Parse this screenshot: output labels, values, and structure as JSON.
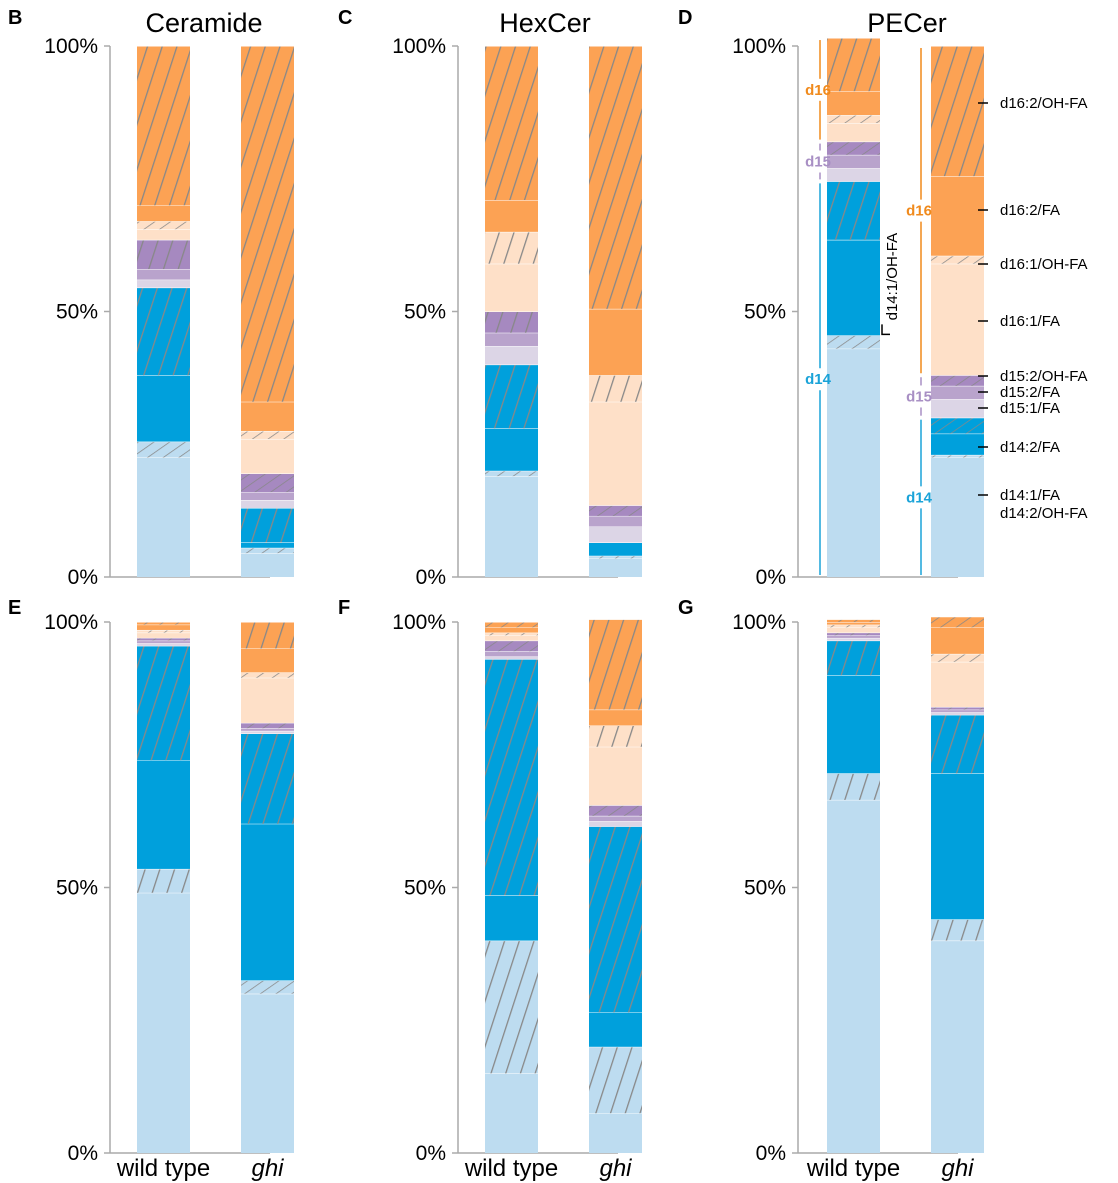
{
  "colors": {
    "d14:1/FA": "#bddcf0",
    "d14:2/OH-FA": "#bddcf0",
    "d14:2/FA": "#00a0dc",
    "d14:1/OH-FA": "#00a0dc",
    "d15:1/FA": "#dcd5e6",
    "d15:2/FA": "#b9a3cc",
    "d15:2/OH-FA": "#a689c0",
    "d16:1/FA": "#fee0c8",
    "d16:1/OH-FA": "#fee0c8",
    "d16:2/FA": "#fca254",
    "d16:2/OH-FA": "#fca254",
    "d14": "#1aa3d8",
    "d15": "#a88fc4",
    "d16": "#f08a1c",
    "hatch": "#888888",
    "axis": "#aaaaaa"
  },
  "hatched_species": [
    "d14:2/OH-FA",
    "d14:1/OH-FA",
    "d15:2/OH-FA",
    "d16:1/OH-FA",
    "d16:2/OH-FA"
  ],
  "category_labels": [
    "wild type",
    "ghi"
  ],
  "stack_order": [
    "d14:1/FA",
    "d14:2/OH-FA",
    "d14:2/FA",
    "d14:1/OH-FA",
    "d15:1/FA",
    "d15:2/FA",
    "d15:2/OH-FA",
    "d16:1/FA",
    "d16:1/OH-FA",
    "d16:2/FA",
    "d16:2/OH-FA"
  ],
  "legend": [
    {
      "label": "d16:2/OH-FA",
      "species": "d16:2/OH-FA"
    },
    {
      "label": "d16:2/FA",
      "species": "d16:2/FA"
    },
    {
      "label": "d16:1/OH-FA",
      "species": "d16:1/OH-FA"
    },
    {
      "label": "d16:1/FA",
      "species": "d16:1/FA"
    },
    {
      "label": "d15:2/OH-FA",
      "species": "d15:2/OH-FA"
    },
    {
      "label": "d15:2/FA",
      "species": "d15:2/FA"
    },
    {
      "label": "d15:1/FA",
      "species": "d15:1/FA"
    },
    {
      "label": "d14:2/FA",
      "species": "d14:2/FA"
    },
    {
      "label": "d14:1/FA",
      "species": "d14:1/FA"
    },
    {
      "label": "d14:2/OH-FA",
      "species": "d14:2/OH-FA"
    }
  ],
  "group_labels": [
    "d14",
    "d15",
    "d16"
  ],
  "inner_label": "d14:1/OH-FA",
  "chart_data": [
    {
      "panel": "B",
      "type": "bar",
      "stacked": true,
      "title": "Ceramide",
      "yticks": [
        "0%",
        "50%",
        "100%"
      ],
      "ylim": [
        0,
        100
      ],
      "categories": [
        "wild type",
        "ghi"
      ],
      "series": [
        {
          "name": "d14:1/FA",
          "values": [
            22.5,
            4.5
          ]
        },
        {
          "name": "d14:2/OH-FA",
          "values": [
            3,
            1
          ]
        },
        {
          "name": "d14:2/FA",
          "values": [
            12.5,
            1
          ]
        },
        {
          "name": "d14:1/OH-FA",
          "values": [
            16.5,
            6.5
          ]
        },
        {
          "name": "d15:1/FA",
          "values": [
            1.5,
            1.5
          ]
        },
        {
          "name": "d15:2/FA",
          "values": [
            2,
            1.5
          ]
        },
        {
          "name": "d15:2/OH-FA",
          "values": [
            5.5,
            3.5
          ]
        },
        {
          "name": "d16:1/FA",
          "values": [
            2,
            6.5
          ]
        },
        {
          "name": "d16:1/OH-FA",
          "values": [
            1.5,
            1.5
          ]
        },
        {
          "name": "d16:2/FA",
          "values": [
            3,
            5.5
          ]
        },
        {
          "name": "d16:2/OH-FA",
          "values": [
            30,
            67
          ]
        }
      ]
    },
    {
      "panel": "C",
      "type": "bar",
      "stacked": true,
      "title": "HexCer",
      "yticks": [
        "0%",
        "50%",
        "100%"
      ],
      "ylim": [
        0,
        100
      ],
      "categories": [
        "wild type",
        "ghi"
      ],
      "series": [
        {
          "name": "d14:1/FA",
          "values": [
            19,
            3.5
          ]
        },
        {
          "name": "d14:2/OH-FA",
          "values": [
            1,
            0.5
          ]
        },
        {
          "name": "d14:2/FA",
          "values": [
            8,
            2.5
          ]
        },
        {
          "name": "d14:1/OH-FA",
          "values": [
            12,
            0
          ]
        },
        {
          "name": "d15:1/FA",
          "values": [
            3.5,
            3
          ]
        },
        {
          "name": "d15:2/FA",
          "values": [
            2.5,
            2
          ]
        },
        {
          "name": "d15:2/OH-FA",
          "values": [
            4,
            2
          ]
        },
        {
          "name": "d16:1/FA",
          "values": [
            9,
            19.5
          ]
        },
        {
          "name": "d16:1/OH-FA",
          "values": [
            6,
            5
          ]
        },
        {
          "name": "d16:2/FA",
          "values": [
            6,
            12.5
          ]
        },
        {
          "name": "d16:2/OH-FA",
          "values": [
            29,
            49.5
          ]
        }
      ]
    },
    {
      "panel": "D",
      "type": "bar",
      "stacked": true,
      "title": "PECer",
      "yticks": [
        "0%",
        "50%",
        "100%"
      ],
      "ylim": [
        0,
        100
      ],
      "categories": [
        "wild type",
        "ghi"
      ],
      "series": [
        {
          "name": "d14:1/FA",
          "values": [
            43,
            22.5
          ]
        },
        {
          "name": "d14:2/OH-FA",
          "values": [
            2.5,
            0.5
          ]
        },
        {
          "name": "d14:2/FA",
          "values": [
            18,
            4
          ]
        },
        {
          "name": "d14:1/OH-FA",
          "values": [
            11,
            3
          ]
        },
        {
          "name": "d15:1/FA",
          "values": [
            2.5,
            3.5
          ]
        },
        {
          "name": "d15:2/FA",
          "values": [
            2.5,
            2.5
          ]
        },
        {
          "name": "d15:2/OH-FA",
          "values": [
            2.5,
            2
          ]
        },
        {
          "name": "d16:1/FA",
          "values": [
            3.5,
            21
          ]
        },
        {
          "name": "d16:1/OH-FA",
          "values": [
            1.5,
            1.5
          ]
        },
        {
          "name": "d16:2/FA",
          "values": [
            4.5,
            15
          ]
        },
        {
          "name": "d16:2/OH-FA",
          "values": [
            10,
            24.5
          ]
        }
      ]
    },
    {
      "panel": "E",
      "type": "bar",
      "stacked": true,
      "title": "",
      "yticks": [
        "0%",
        "50%",
        "100%"
      ],
      "ylim": [
        0,
        100
      ],
      "categories": [
        "wild type",
        "ghi"
      ],
      "series": [
        {
          "name": "d14:1/FA",
          "values": [
            49,
            30
          ]
        },
        {
          "name": "d14:2/OH-FA",
          "values": [
            4.5,
            2.5
          ]
        },
        {
          "name": "d14:2/FA",
          "values": [
            20.5,
            29.5
          ]
        },
        {
          "name": "d14:1/OH-FA",
          "values": [
            21.5,
            17
          ]
        },
        {
          "name": "d15:1/FA",
          "values": [
            0.5,
            0.5
          ]
        },
        {
          "name": "d15:2/FA",
          "values": [
            0.5,
            0.5
          ]
        },
        {
          "name": "d15:2/OH-FA",
          "values": [
            0.5,
            1
          ]
        },
        {
          "name": "d16:1/FA",
          "values": [
            1,
            8.5
          ]
        },
        {
          "name": "d16:1/OH-FA",
          "values": [
            0.5,
            1
          ]
        },
        {
          "name": "d16:2/FA",
          "values": [
            1,
            4.5
          ]
        },
        {
          "name": "d16:2/OH-FA",
          "values": [
            0.5,
            5
          ]
        }
      ]
    },
    {
      "panel": "F",
      "type": "bar",
      "stacked": true,
      "title": "",
      "yticks": [
        "0%",
        "50%",
        "100%"
      ],
      "ylim": [
        0,
        100
      ],
      "categories": [
        "wild type",
        "ghi"
      ],
      "series": [
        {
          "name": "d14:1/FA",
          "values": [
            15,
            7.5
          ]
        },
        {
          "name": "d14:2/OH-FA",
          "values": [
            25,
            12.5
          ]
        },
        {
          "name": "d14:2/FA",
          "values": [
            8.5,
            6.5
          ]
        },
        {
          "name": "d14:1/OH-FA",
          "values": [
            44.5,
            35
          ]
        },
        {
          "name": "d15:1/FA",
          "values": [
            0.5,
            1
          ]
        },
        {
          "name": "d15:2/FA",
          "values": [
            1,
            1
          ]
        },
        {
          "name": "d15:2/OH-FA",
          "values": [
            2,
            2
          ]
        },
        {
          "name": "d16:1/FA",
          "values": [
            1,
            11
          ]
        },
        {
          "name": "d16:1/OH-FA",
          "values": [
            0.5,
            4
          ]
        },
        {
          "name": "d16:2/FA",
          "values": [
            1,
            3
          ]
        },
        {
          "name": "d16:2/OH-FA",
          "values": [
            1,
            17
          ]
        }
      ]
    },
    {
      "panel": "G",
      "type": "bar",
      "stacked": true,
      "title": "",
      "yticks": [
        "0%",
        "50%",
        "100%"
      ],
      "ylim": [
        0,
        100
      ],
      "categories": [
        "wild type",
        "ghi"
      ],
      "series": [
        {
          "name": "d14:1/FA",
          "values": [
            66.5,
            40
          ]
        },
        {
          "name": "d14:2/OH-FA",
          "values": [
            5,
            4
          ]
        },
        {
          "name": "d14:2/FA",
          "values": [
            18.5,
            27.5
          ]
        },
        {
          "name": "d14:1/OH-FA",
          "values": [
            6.5,
            11
          ]
        },
        {
          "name": "d15:1/FA",
          "values": [
            0.5,
            0.5
          ]
        },
        {
          "name": "d15:2/FA",
          "values": [
            0.5,
            0.5
          ]
        },
        {
          "name": "d15:2/OH-FA",
          "values": [
            0.5,
            0.5
          ]
        },
        {
          "name": "d16:1/FA",
          "values": [
            1,
            8.5
          ]
        },
        {
          "name": "d16:1/OH-FA",
          "values": [
            0.5,
            1.5
          ]
        },
        {
          "name": "d16:2/FA",
          "values": [
            0.5,
            5
          ]
        },
        {
          "name": "d16:2/OH-FA",
          "values": [
            0.5,
            2
          ]
        }
      ]
    }
  ]
}
